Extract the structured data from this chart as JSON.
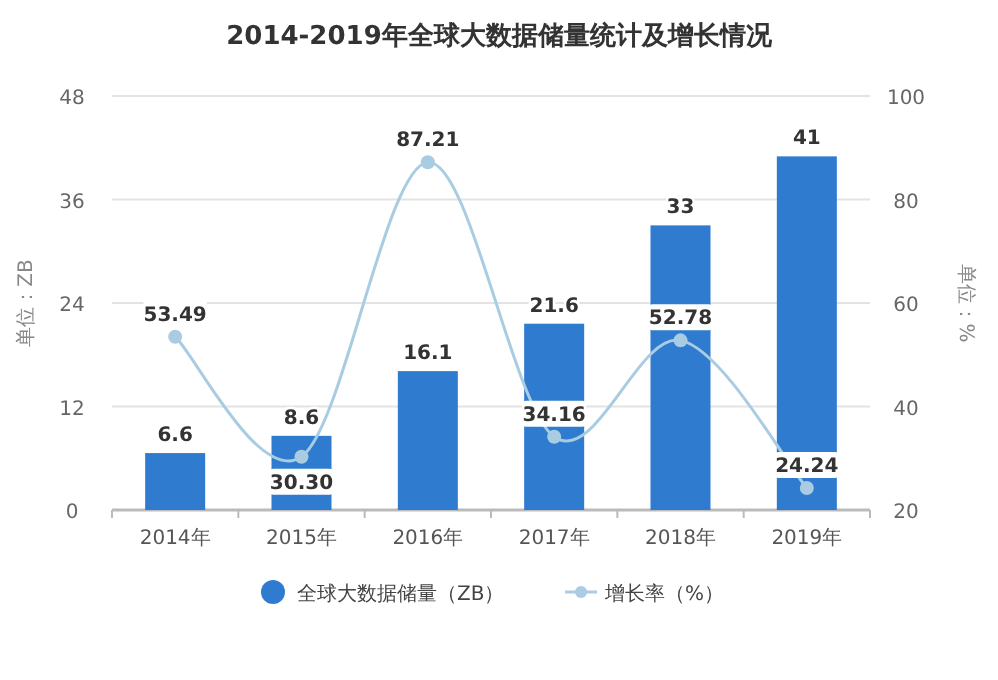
{
  "chart_data": {
    "type": "bar",
    "title": "2014-2019年全球大数据储量统计及增长情况",
    "categories": [
      "2014年",
      "2015年",
      "2016年",
      "2017年",
      "2018年",
      "2019年"
    ],
    "series": [
      {
        "name": "全球大数据储量（ZB）",
        "color": "#2e7bcf",
        "values": [
          6.6,
          8.6,
          16.1,
          21.6,
          33,
          41
        ]
      },
      {
        "name": "增长率（%）",
        "type": "line",
        "axis": "y2",
        "color": "#a9cce3",
        "values": [
          53.49,
          30.3,
          87.21,
          34.16,
          52.78,
          24.24
        ],
        "value_labels": [
          "53.49",
          "30.30",
          "87.21",
          "34.16",
          "52.78",
          "24.24"
        ]
      }
    ],
    "ylabel": "单位：ZB",
    "y2label": "单位：%",
    "ylim": [
      0,
      48
    ],
    "yticks": [
      0,
      12,
      24,
      36,
      48
    ],
    "y2lim": [
      20,
      100
    ],
    "y2ticks": [
      20,
      40,
      60,
      80,
      100
    ],
    "grid": "y",
    "legend": "bottom",
    "data_labels": true,
    "marker": "circle"
  }
}
